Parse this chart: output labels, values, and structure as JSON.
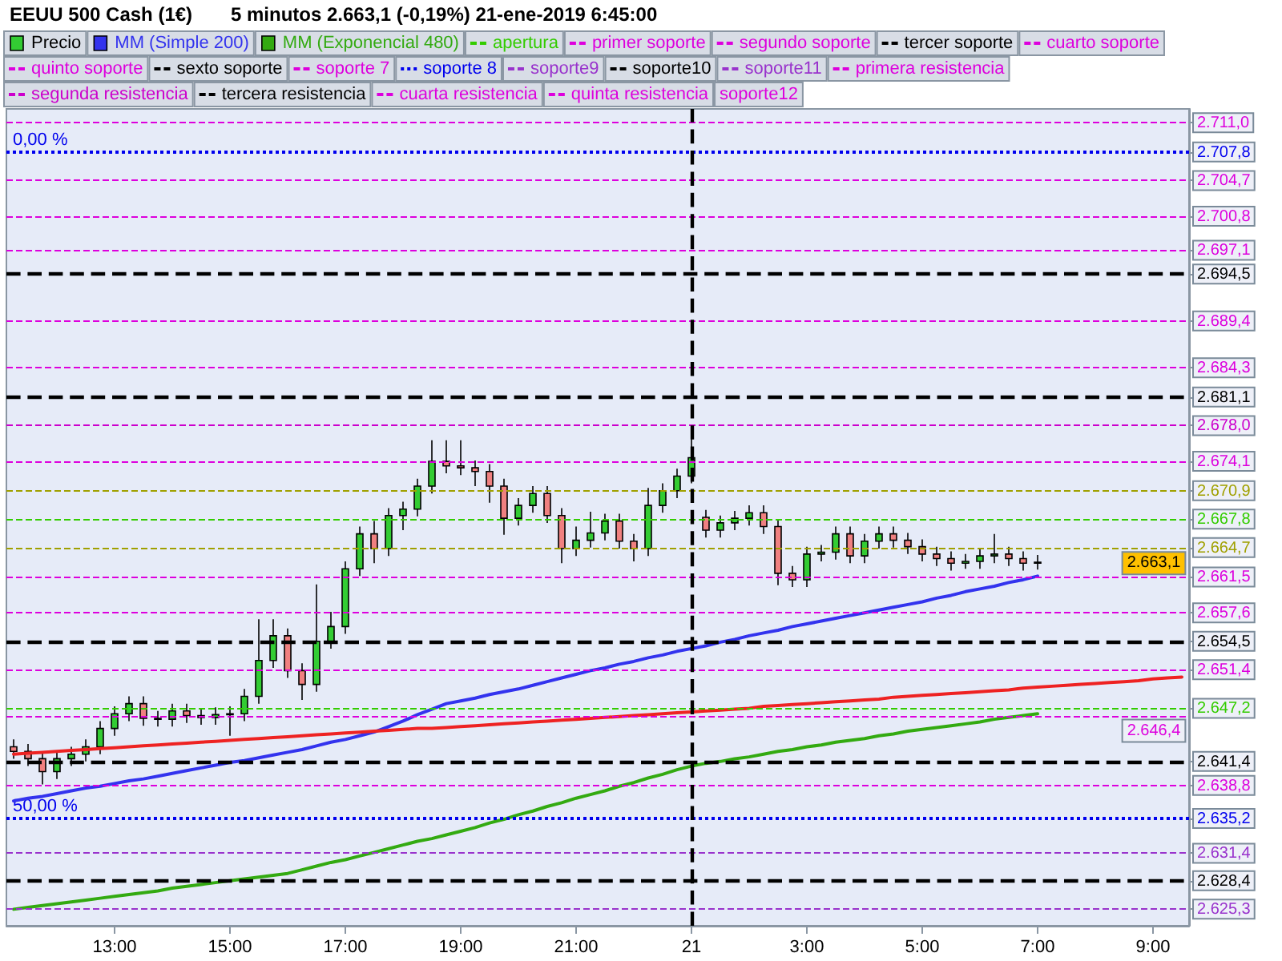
{
  "chart_data": {
    "type": "candlestick",
    "title": "EEUU 500 Cash (1€)",
    "subtitle": "5 minutos 2.663,1 (-0,19%) 21-ene-2019 6:45:00",
    "legend": "top left",
    "categories": [
      null,
      null,
      null,
      null,
      null,
      null,
      null,
      "13:00",
      null,
      null,
      null,
      null,
      null,
      null,
      null,
      "15:00",
      null,
      null,
      null,
      null,
      null,
      null,
      null,
      "17:00",
      null,
      null,
      null,
      null,
      null,
      null,
      null,
      "19:00",
      null,
      null,
      null,
      null,
      null,
      null,
      null,
      "21:00",
      null,
      null,
      null,
      null,
      null,
      null,
      null,
      "21",
      null,
      null,
      null,
      null,
      null,
      null,
      null,
      "3:00",
      null,
      null,
      null,
      null,
      null,
      null,
      null,
      "5:00",
      null,
      null,
      null,
      null,
      null,
      null,
      null,
      "7:00",
      null,
      null,
      null,
      null,
      null,
      null,
      null,
      "9:00",
      null,
      null
    ],
    "ylim": [
      2623.5,
      2712.5
    ],
    "yticks": [
      {
        "value": 2711.0,
        "label": "2.711,0"
      },
      {
        "value": 2707.8,
        "label": "2.707,8"
      },
      {
        "value": 2704.7,
        "label": "2.704,7"
      },
      {
        "value": 2700.8,
        "label": "2.700,8"
      },
      {
        "value": 2697.1,
        "label": "2.697,1"
      },
      {
        "value": 2694.5,
        "label": "2.694,5"
      },
      {
        "value": 2689.4,
        "label": "2.689,4"
      },
      {
        "value": 2684.3,
        "label": "2.684,3"
      },
      {
        "value": 2681.1,
        "label": "2.681,1"
      },
      {
        "value": 2678.0,
        "label": "2.678,0"
      },
      {
        "value": 2674.1,
        "label": "2.674,1"
      },
      {
        "value": 2670.9,
        "label": "2.670,9"
      },
      {
        "value": 2667.8,
        "label": "2.667,8"
      },
      {
        "value": 2664.7,
        "label": "2.664,7"
      },
      {
        "value": 2661.5,
        "label": "2.661,5"
      },
      {
        "value": 2657.6,
        "label": "2.657,6"
      },
      {
        "value": 2654.5,
        "label": "2.654,5"
      },
      {
        "value": 2651.4,
        "label": "2.651,4"
      },
      {
        "value": 2647.2,
        "label": "2.647,2"
      },
      {
        "value": 2641.4,
        "label": "2.641,4"
      },
      {
        "value": 2638.8,
        "label": "2.638,8"
      },
      {
        "value": 2635.2,
        "label": "2.635,2"
      },
      {
        "value": 2631.4,
        "label": "2.631,4"
      },
      {
        "value": 2628.4,
        "label": "2.628,4"
      },
      {
        "value": 2625.3,
        "label": "2.625,3"
      }
    ],
    "series": [
      {
        "name": "Precio",
        "ohlc": [
          [
            2643.0,
            2643.8,
            2641.7,
            2642.5
          ],
          [
            2642.5,
            2643.3,
            2640.9,
            2641.7
          ],
          [
            2641.7,
            2642.5,
            2638.9,
            2640.3
          ],
          [
            2640.3,
            2642.5,
            2639.5,
            2641.7
          ],
          [
            2641.7,
            2643.0,
            2640.9,
            2642.2
          ],
          [
            2642.2,
            2643.8,
            2641.4,
            2643.0
          ],
          [
            2643.0,
            2645.8,
            2642.2,
            2645.0
          ],
          [
            2645.0,
            2647.4,
            2644.2,
            2646.6
          ],
          [
            2646.6,
            2648.5,
            2645.8,
            2647.7
          ],
          [
            2647.7,
            2648.5,
            2645.3,
            2646.1
          ],
          [
            2646.1,
            2646.9,
            2645.2,
            2646.0
          ],
          [
            2646.0,
            2647.7,
            2645.2,
            2646.9
          ],
          [
            2646.9,
            2647.7,
            2645.6,
            2646.4
          ],
          [
            2646.4,
            2647.2,
            2645.4,
            2646.2
          ],
          [
            2646.2,
            2647.3,
            2645.4,
            2646.5
          ],
          [
            2646.5,
            2647.4,
            2644.2,
            2646.6
          ],
          [
            2646.6,
            2649.3,
            2645.8,
            2648.5
          ],
          [
            2648.5,
            2656.9,
            2647.7,
            2652.4
          ],
          [
            2652.4,
            2656.9,
            2651.6,
            2655.1
          ],
          [
            2655.1,
            2655.9,
            2650.5,
            2651.3
          ],
          [
            2651.3,
            2652.1,
            2648.1,
            2649.8
          ],
          [
            2649.8,
            2660.7,
            2649.0,
            2654.5
          ],
          [
            2654.5,
            2657.7,
            2653.7,
            2656.1
          ],
          [
            2656.1,
            2663.2,
            2655.3,
            2662.4
          ],
          [
            2662.4,
            2667.0,
            2661.6,
            2666.2
          ],
          [
            2666.2,
            2667.6,
            2663.0,
            2664.6
          ],
          [
            2664.6,
            2669.0,
            2663.8,
            2668.2
          ],
          [
            2668.2,
            2669.7,
            2666.6,
            2668.9
          ],
          [
            2668.9,
            2672.2,
            2668.1,
            2671.4
          ],
          [
            2671.4,
            2676.4,
            2670.6,
            2674.1
          ],
          [
            2674.1,
            2676.4,
            2672.8,
            2673.6
          ],
          [
            2673.6,
            2676.4,
            2672.6,
            2673.4
          ],
          [
            2673.4,
            2674.2,
            2671.4,
            2673.0
          ],
          [
            2673.0,
            2673.8,
            2669.6,
            2671.4
          ],
          [
            2671.4,
            2672.2,
            2666.1,
            2667.9
          ],
          [
            2667.9,
            2670.1,
            2667.1,
            2669.3
          ],
          [
            2669.3,
            2671.4,
            2668.5,
            2670.6
          ],
          [
            2670.6,
            2671.4,
            2667.4,
            2668.2
          ],
          [
            2668.2,
            2669.0,
            2663.0,
            2664.6
          ],
          [
            2664.6,
            2667.0,
            2663.8,
            2665.5
          ],
          [
            2665.5,
            2668.6,
            2664.7,
            2666.3
          ],
          [
            2666.3,
            2668.4,
            2665.5,
            2667.6
          ],
          [
            2667.6,
            2668.4,
            2664.6,
            2665.4
          ],
          [
            2665.4,
            2666.2,
            2663.2,
            2664.6
          ],
          [
            2664.6,
            2671.2,
            2663.8,
            2669.3
          ],
          [
            2669.3,
            2671.7,
            2668.5,
            2670.9
          ],
          [
            2670.9,
            2673.3,
            2670.1,
            2672.5
          ],
          [
            2672.5,
            2677.0,
            2671.7,
            2674.5
          ],
          [
            2668.0,
            2668.8,
            2665.8,
            2666.6
          ],
          [
            2666.6,
            2668.2,
            2665.8,
            2667.4
          ],
          [
            2667.4,
            2668.7,
            2666.6,
            2667.9
          ],
          [
            2667.9,
            2669.3,
            2667.1,
            2668.5
          ],
          [
            2668.5,
            2669.3,
            2666.2,
            2667.0
          ],
          [
            2667.0,
            2667.8,
            2660.6,
            2661.9
          ],
          [
            2661.9,
            2662.7,
            2660.4,
            2661.2
          ],
          [
            2661.2,
            2664.8,
            2660.4,
            2664.0
          ],
          [
            2664.0,
            2665.0,
            2663.2,
            2664.2
          ],
          [
            2664.2,
            2667.0,
            2663.4,
            2666.2
          ],
          [
            2666.2,
            2667.0,
            2663.0,
            2663.8
          ],
          [
            2663.8,
            2666.2,
            2663.0,
            2665.4
          ],
          [
            2665.4,
            2667.0,
            2664.6,
            2666.2
          ],
          [
            2666.2,
            2667.0,
            2664.7,
            2665.5
          ],
          [
            2665.5,
            2666.3,
            2664.0,
            2664.8
          ],
          [
            2664.8,
            2665.6,
            2663.2,
            2664.0
          ],
          [
            2664.0,
            2664.8,
            2662.7,
            2663.5
          ],
          [
            2663.5,
            2664.3,
            2662.2,
            2663.0
          ],
          [
            2663.0,
            2664.0,
            2662.4,
            2663.2
          ],
          [
            2663.2,
            2664.6,
            2662.4,
            2663.8
          ],
          [
            2663.8,
            2666.2,
            2663.0,
            2664.0
          ],
          [
            2664.0,
            2664.8,
            2662.7,
            2663.5
          ],
          [
            2663.5,
            2664.3,
            2662.2,
            2663.0
          ],
          [
            2663.0,
            2663.9,
            2662.3,
            2663.1
          ],
          null,
          null,
          null,
          null,
          null,
          null,
          null,
          null,
          null,
          null
        ]
      },
      {
        "name": "MM (Simple 200)",
        "type": "line",
        "color": "#3333ee",
        "values": [
          2637.1,
          2637.4,
          2637.6,
          2637.9,
          2638.2,
          2638.5,
          2638.7,
          2639.0,
          2639.3,
          2639.5,
          2639.8,
          2640.1,
          2640.4,
          2640.7,
          2641.0,
          2641.3,
          2641.5,
          2641.8,
          2642.1,
          2642.4,
          2642.7,
          2643.1,
          2643.5,
          2643.8,
          2644.2,
          2644.6,
          2645.2,
          2645.8,
          2646.5,
          2647.1,
          2647.7,
          2648.0,
          2648.3,
          2648.7,
          2649.0,
          2649.3,
          2649.7,
          2650.1,
          2650.5,
          2650.9,
          2651.3,
          2651.6,
          2652.0,
          2652.3,
          2652.7,
          2653.0,
          2653.4,
          2653.7,
          2654.0,
          2654.4,
          2654.7,
          2655.1,
          2655.4,
          2655.7,
          2656.1,
          2656.4,
          2656.7,
          2657.0,
          2657.3,
          2657.6,
          2657.9,
          2658.2,
          2658.5,
          2658.8,
          2659.2,
          2659.5,
          2659.9,
          2660.2,
          2660.5,
          2660.9,
          2661.2,
          2661.6,
          null,
          null,
          null,
          null,
          null,
          null,
          null,
          null,
          null,
          null
        ]
      },
      {
        "name": "MM (Exponencial 480)",
        "type": "line",
        "color": "#33aa11",
        "values": [
          2625.3,
          2625.5,
          2625.7,
          2625.9,
          2626.1,
          2626.3,
          2626.5,
          2626.7,
          2626.9,
          2627.1,
          2627.3,
          2627.6,
          2627.8,
          2628.0,
          2628.2,
          2628.4,
          2628.6,
          2628.8,
          2629.0,
          2629.2,
          2629.6,
          2630.0,
          2630.4,
          2630.7,
          2631.1,
          2631.5,
          2631.9,
          2632.3,
          2632.7,
          2633.0,
          2633.4,
          2633.8,
          2634.2,
          2634.7,
          2635.1,
          2635.6,
          2636.0,
          2636.5,
          2636.9,
          2637.4,
          2637.8,
          2638.2,
          2638.7,
          2639.1,
          2639.6,
          2640.0,
          2640.5,
          2640.9,
          2641.2,
          2641.4,
          2641.7,
          2641.9,
          2642.2,
          2642.5,
          2642.7,
          2643.0,
          2643.2,
          2643.5,
          2643.7,
          2643.9,
          2644.2,
          2644.4,
          2644.7,
          2644.9,
          2645.1,
          2645.3,
          2645.5,
          2645.7,
          2646.0,
          2646.2,
          2646.4,
          2646.6,
          null,
          null,
          null,
          null,
          null,
          null,
          null,
          null,
          null,
          null
        ]
      },
      {
        "type": "line",
        "color": "#ee2222",
        "values": [
          2642.2,
          2642.3,
          2642.4,
          2642.5,
          2642.6,
          2642.7,
          2642.8,
          2642.9,
          2643.0,
          2643.1,
          2643.2,
          2643.3,
          2643.4,
          2643.5,
          2643.6,
          2643.7,
          2643.8,
          2643.9,
          2644.0,
          2644.1,
          2644.2,
          2644.3,
          2644.4,
          2644.5,
          2644.6,
          2644.7,
          2644.8,
          2644.9,
          2645.0,
          2645.0,
          2645.1,
          2645.2,
          2645.3,
          2645.4,
          2645.5,
          2645.6,
          2645.7,
          2645.8,
          2645.9,
          2646.0,
          2646.1,
          2646.2,
          2646.3,
          2646.4,
          2646.5,
          2646.6,
          2646.7,
          2646.8,
          2646.9,
          2647.0,
          2647.1,
          2647.2,
          2647.4,
          2647.5,
          2647.6,
          2647.7,
          2647.8,
          2647.9,
          2648.0,
          2648.1,
          2648.2,
          2648.4,
          2648.5,
          2648.6,
          2648.7,
          2648.8,
          2648.9,
          2649.0,
          2649.1,
          2649.2,
          2649.4,
          2649.5,
          2649.6,
          2649.7,
          2649.8,
          2649.9,
          2650.0,
          2650.1,
          2650.2,
          2650.4,
          2650.5,
          2650.6
        ]
      }
    ],
    "ref_lines": [
      {
        "axis": "y",
        "value": 2667.8,
        "label": "apertura",
        "color": "#33cc00",
        "line_style": "dashed"
      },
      {
        "axis": "y",
        "value": 2661.5,
        "label": "primer soporte",
        "color": "#dd00dd",
        "line_style": "dashed"
      },
      {
        "axis": "y",
        "value": 2657.6,
        "label": "segundo soporte",
        "color": "#dd00dd",
        "line_style": "dashed"
      },
      {
        "axis": "y",
        "value": 2654.5,
        "label": "tercer soporte",
        "color": "#000000",
        "line_style": "dashed"
      },
      {
        "axis": "y",
        "value": 2651.4,
        "label": "cuarto soporte",
        "color": "#dd00dd",
        "line_style": "dashed"
      },
      {
        "axis": "y",
        "value": 2646.4,
        "label": "quinto soporte",
        "color": "#dd00dd",
        "line_style": "dashed"
      },
      {
        "axis": "y",
        "value": 2641.4,
        "label": "sexto soporte",
        "color": "#000000",
        "line_style": "dashed"
      },
      {
        "axis": "y",
        "value": 2638.8,
        "label": "soporte 7",
        "color": "#dd00dd",
        "line_style": "dashed"
      },
      {
        "axis": "y",
        "value": 2635.2,
        "label": "soporte 8",
        "color": "#0000ee",
        "line_style": "dotted"
      },
      {
        "axis": "y",
        "value": 2631.4,
        "label": "soporte9",
        "color": "#9933cc",
        "line_style": "dashed"
      },
      {
        "axis": "y",
        "value": 2628.4,
        "label": "soporte10",
        "color": "#000000",
        "line_style": "dashed"
      },
      {
        "axis": "y",
        "value": 2625.3,
        "label": "soporte11",
        "color": "#9933cc",
        "line_style": "dashed"
      },
      {
        "axis": "y",
        "value": 2674.1,
        "label": "primera resistencia",
        "color": "#dd00dd",
        "line_style": "dashed"
      },
      {
        "axis": "y",
        "value": 2678.0,
        "label": "segunda resistencia",
        "color": "#cc00cc",
        "line_style": "dashed"
      },
      {
        "axis": "y",
        "value": 2681.1,
        "label": "tercera resistencia",
        "color": "#000000",
        "line_style": "dashed"
      },
      {
        "axis": "y",
        "value": 2684.3,
        "label": "cuarta resistencia",
        "color": "#dd00dd",
        "line_style": "dashed"
      },
      {
        "axis": "y",
        "value": 2689.4,
        "label": "quinta resistencia",
        "color": "#dd00dd",
        "line_style": "dashed"
      },
      {
        "axis": "y",
        "value": 2711.0,
        "color": "#dd00dd",
        "line_style": "dashed"
      },
      {
        "axis": "y",
        "value": 2704.7,
        "color": "#dd00dd",
        "line_style": "dashed"
      },
      {
        "axis": "y",
        "value": 2700.8,
        "color": "#dd00dd",
        "line_style": "dashed"
      },
      {
        "axis": "y",
        "value": 2697.1,
        "color": "#dd00dd",
        "line_style": "dashed"
      },
      {
        "axis": "y",
        "value": 2694.5,
        "color": "#000000",
        "line_style": "dashed"
      },
      {
        "axis": "y",
        "value": 2670.9,
        "color": "#a0a000",
        "line_style": "dashed"
      },
      {
        "axis": "y",
        "value": 2664.7,
        "color": "#a0a000",
        "line_style": "dashed"
      },
      {
        "axis": "y",
        "value": 2647.2,
        "color": "#33cc00",
        "line_style": "dashed"
      },
      {
        "axis": "y",
        "value": 2707.8,
        "color": "#0000ee",
        "line_style": "dotted"
      },
      {
        "axis": "x",
        "value": "21",
        "color": "#000000",
        "line_style": "dashed"
      }
    ],
    "annotations": [
      "soporte12",
      {
        "text": "0,00 %",
        "y": 2707.8
      },
      {
        "text": "50,00 %",
        "y": 2635.2
      },
      {
        "text": "2.663,1",
        "x": "9:00",
        "y": 2663.1
      },
      {
        "text": "2.646,4",
        "x": "9:00",
        "y": 2646.4
      }
    ]
  }
}
